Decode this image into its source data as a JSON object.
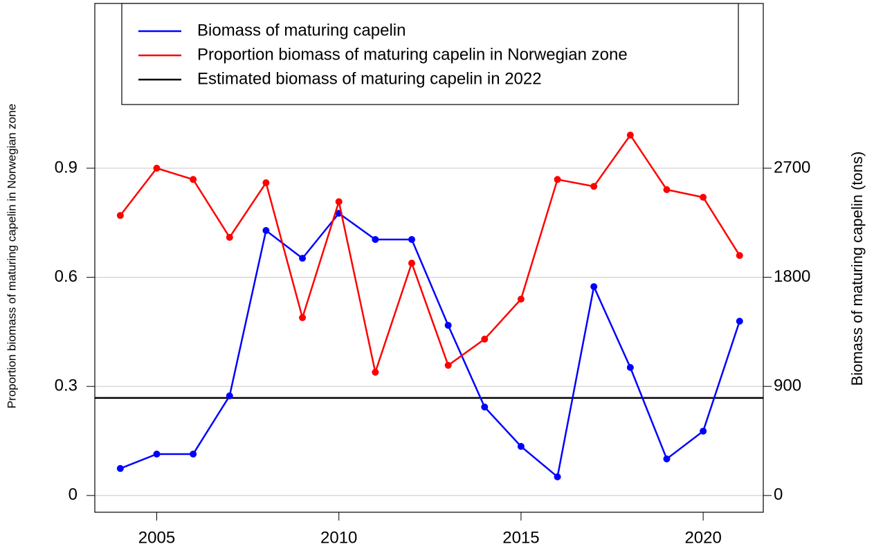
{
  "chart_data": {
    "type": "line",
    "x": [
      2004,
      2005,
      2006,
      2007,
      2008,
      2009,
      2010,
      2011,
      2012,
      2013,
      2014,
      2015,
      2016,
      2017,
      2018,
      2019,
      2020,
      2021
    ],
    "series": [
      {
        "name": "Biomass of maturing capelin",
        "color": "#0000ff",
        "axis": "y2",
        "values": [
          223,
          342,
          342,
          822,
          2186,
          1957,
          2328,
          2112,
          2112,
          1404,
          730,
          405,
          154,
          1723,
          1056,
          302,
          531,
          1438
        ]
      },
      {
        "name": "Proportion biomass of maturing capelin in Norwegian zone",
        "color": "#ff0000",
        "values": [
          0.77,
          0.9,
          0.869,
          0.71,
          0.86,
          0.489,
          0.808,
          0.339,
          0.639,
          0.358,
          0.43,
          0.54,
          0.869,
          0.85,
          0.991,
          0.841,
          0.82,
          0.66
        ]
      }
    ],
    "reference_lines": [
      {
        "name": "Estimated biomass of maturing capelin in 2022",
        "color": "#000000",
        "value": 805,
        "axis": "y2"
      }
    ],
    "ylabel": "Proportion biomass of maturing capelin in Norwegian zone",
    "y2label": "Biomass of maturing capelin (tons)",
    "xlim": [
      2003.3,
      2021.65
    ],
    "xticks": [
      2005,
      2010,
      2015,
      2020
    ],
    "ylim": [
      -0.046,
      1.353
    ],
    "yticks": [
      0,
      0.3,
      0.6,
      0.9
    ],
    "y2lim": [
      -138,
      4059
    ],
    "y2ticks": [
      0,
      900,
      1800,
      2700
    ],
    "grid": true,
    "legend": "top"
  }
}
